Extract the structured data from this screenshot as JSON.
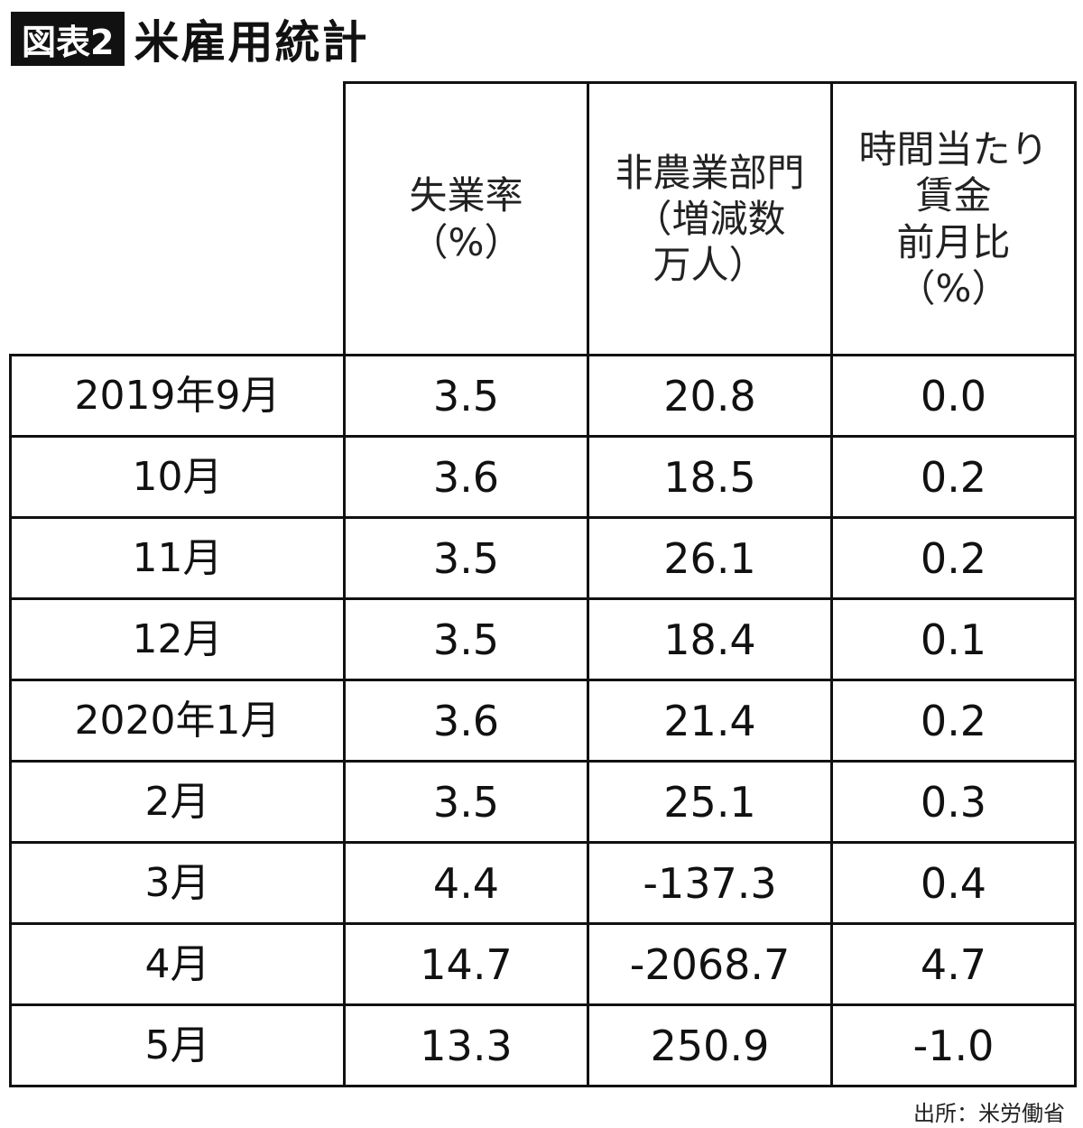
{
  "header": {
    "badge": "図表2",
    "title": "米雇用統計"
  },
  "table": {
    "columns": [
      {
        "lines": [
          "失業率",
          "（%）"
        ]
      },
      {
        "lines": [
          "非農業部門",
          "（増減数",
          "万人）"
        ]
      },
      {
        "lines": [
          "時間当たり",
          "賃金",
          "前月比",
          "（%）"
        ]
      }
    ],
    "rows": [
      {
        "period": "2019年9月",
        "unemployment": "3.5",
        "nonfarm": "20.8",
        "wages": "0.0"
      },
      {
        "period": "10月",
        "unemployment": "3.6",
        "nonfarm": "18.5",
        "wages": "0.2"
      },
      {
        "period": "11月",
        "unemployment": "3.5",
        "nonfarm": "26.1",
        "wages": "0.2"
      },
      {
        "period": "12月",
        "unemployment": "3.5",
        "nonfarm": "18.4",
        "wages": "0.1"
      },
      {
        "period": "2020年1月",
        "unemployment": "3.6",
        "nonfarm": "21.4",
        "wages": "0.2"
      },
      {
        "period": "2月",
        "unemployment": "3.5",
        "nonfarm": "25.1",
        "wages": "0.3"
      },
      {
        "period": "3月",
        "unemployment": "4.4",
        "nonfarm": "-137.3",
        "wages": "0.4"
      },
      {
        "period": "4月",
        "unemployment": "14.7",
        "nonfarm": "-2068.7",
        "wages": "4.7"
      },
      {
        "period": "5月",
        "unemployment": "13.3",
        "nonfarm": "250.9",
        "wages": "-1.0"
      }
    ]
  },
  "footer": {
    "source": "出所：米労働省"
  }
}
